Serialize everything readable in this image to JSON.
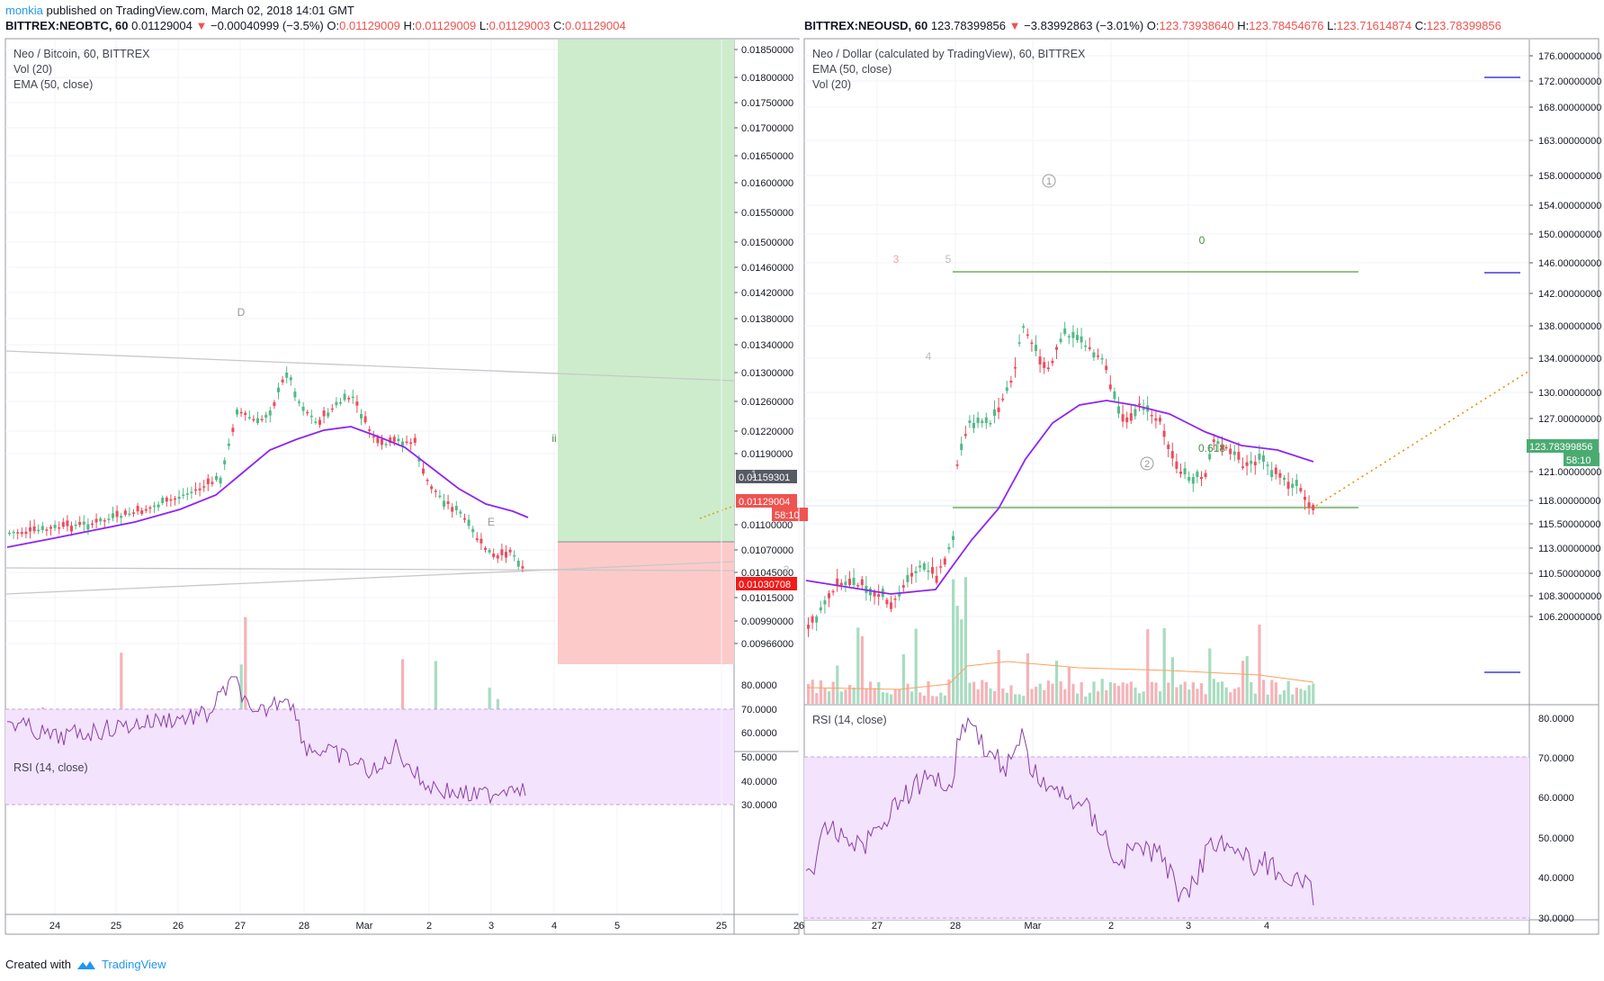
{
  "header": {
    "user": "monkia",
    "published_text": "published on TradingView.com, March 02, 2018 14:01 GMT"
  },
  "left": {
    "symbol": "BITTREX:NEOBTC, 60",
    "last": "0.01129004",
    "change_arrow": "▼",
    "change": "−0.00040999 (−3.5%)",
    "o_label": "O:",
    "o": "0.01129009",
    "h_label": "H:",
    "h": "0.01129009",
    "l_label": "L:",
    "l": "0.01129003",
    "c_label": "C:",
    "c": "0.01129004",
    "legend": [
      "Neo / Bitcoin, 60, BITTREX",
      "Vol (20)",
      "EMA (50, close)"
    ],
    "rsi_legend": "RSI (14, close)",
    "price_ticks": [
      "0.01850000",
      "0.01800000",
      "0.01750000",
      "0.01700000",
      "0.01650000",
      "0.01600000",
      "0.01550000",
      "0.01500000",
      "0.01460000",
      "0.01420000",
      "0.01380000",
      "0.01340000",
      "0.01300000",
      "0.01260000",
      "0.01220000",
      "0.01190000",
      "0.01100000",
      "0.01070000",
      "0.01045000",
      "0.01015000",
      "0.00990000",
      "0.00966000"
    ],
    "price_tick_y": [
      55,
      86,
      114,
      142,
      173,
      203,
      236,
      269,
      297,
      325,
      354,
      383,
      414,
      446,
      479,
      504,
      583,
      611,
      636,
      664,
      690,
      715
    ],
    "rsi_ticks": [
      "80.0000",
      "70.0000",
      "60.0000",
      "50.0000",
      "40.0000",
      "30.0000"
    ],
    "rsi_tick_y": [
      761,
      788,
      814,
      841,
      868,
      894
    ],
    "time_ticks": [
      "24",
      "25",
      "26",
      "27",
      "28",
      "Mar",
      "2",
      "3",
      "4",
      "5"
    ],
    "time_tick_x": [
      61,
      129,
      198,
      267,
      338,
      405,
      477,
      546,
      616,
      686
    ],
    "price_tags": [
      {
        "text": "0.01159301",
        "color": "#555a63",
        "y": 530
      },
      {
        "text": "0.01129004",
        "color": "#ef5350",
        "y": 557
      },
      {
        "text": "58:10",
        "color": "#ef5350",
        "y": 572
      },
      {
        "text": "0.01030708",
        "color": "#f21a1a",
        "y": 649
      }
    ],
    "annotations": [
      {
        "text": "D",
        "x": 268,
        "y": 347,
        "color": "#999999"
      },
      {
        "text": "E",
        "x": 546,
        "y": 580,
        "color": "#999999"
      },
      {
        "text": "ii",
        "x": 616,
        "y": 487,
        "color": "#4c8f46"
      }
    ]
  },
  "right": {
    "symbol": "BITTREX:NEOUSD, 60",
    "last": "123.78399856",
    "change_arrow": "▼",
    "change": "−3.83992863 (−3.01%)",
    "o_label": "O:",
    "o": "123.73938640",
    "h_label": "H:",
    "h": "123.78454676",
    "l_label": "L:",
    "l": "123.71614874",
    "c_label": "C:",
    "c": "123.78399856",
    "legend": [
      "Neo / Dollar (calculated by TradingView), 60, BITTREX",
      "EMA (50, close)",
      "Vol (20)"
    ],
    "rsi_legend": "RSI (14, close)",
    "price_ticks": [
      "176.00000000",
      "172.00000000",
      "168.00000000",
      "163.00000000",
      "158.00000000",
      "154.00000000",
      "150.00000000",
      "146.00000000",
      "142.00000000",
      "138.00000000",
      "134.00000000",
      "130.00000000",
      "127.00000000",
      "121.00000000",
      "118.00000000",
      "115.50000000",
      "113.00000000",
      "110.50000000",
      "108.30000000",
      "106.20000000"
    ],
    "price_tick_y": [
      62,
      90,
      119,
      156,
      195,
      228,
      260,
      292,
      326,
      362,
      398,
      436,
      465,
      524,
      556,
      582,
      609,
      637,
      662,
      685
    ],
    "rsi_ticks": [
      "80.0000",
      "70.0000",
      "60.0000",
      "50.0000",
      "40.0000",
      "30.0000"
    ],
    "rsi_tick_y": [
      702,
      741,
      780,
      819,
      858,
      898
    ],
    "time_ticks": [
      "25",
      "26",
      "27",
      "28",
      "Mar",
      "2",
      "3",
      "4"
    ],
    "time_tick_x": [
      802,
      888,
      975,
      1062,
      1148,
      1235,
      1321,
      1408
    ],
    "price_tags": [
      {
        "text": "123.78399856",
        "color": "#4aab71",
        "y": 496
      },
      {
        "text": "58:10",
        "color": "#4aab71",
        "y": 511
      }
    ],
    "annotations": [
      {
        "text": "1",
        "x": 1166,
        "y": 201,
        "color": "#999999",
        "circle": true
      },
      {
        "text": "2",
        "x": 1275,
        "y": 515,
        "color": "#999999",
        "circle": true
      },
      {
        "text": "0",
        "x": 1336,
        "y": 267,
        "color": "#4c8f46"
      },
      {
        "text": "0.618",
        "x": 1347,
        "y": 498,
        "color": "#4c8f46"
      },
      {
        "text": "3",
        "x": 996,
        "y": 288,
        "color": "#f4a0a0"
      },
      {
        "text": "5",
        "x": 1054,
        "y": 288,
        "color": "#bbbbbb"
      },
      {
        "text": "4",
        "x": 1032,
        "y": 396,
        "color": "#bbbbbb"
      },
      {
        "text": "1",
        "x": 838,
        "y": 527,
        "color": "#cccccc"
      },
      {
        "text": "2",
        "x": 874,
        "y": 633,
        "color": "#bbbbbb"
      }
    ]
  },
  "footer": {
    "created": "Created with",
    "brand": "TradingView"
  },
  "colors": {
    "up": "#53b987",
    "down": "#eb4d5c",
    "ema": "#8e24f2",
    "rsi": "#8b3ea6",
    "rsi_band": "#f3e3fd",
    "green_zone": "#cdeccc",
    "red_zone": "#fdcaca",
    "fib": "#5a9a3a"
  }
}
